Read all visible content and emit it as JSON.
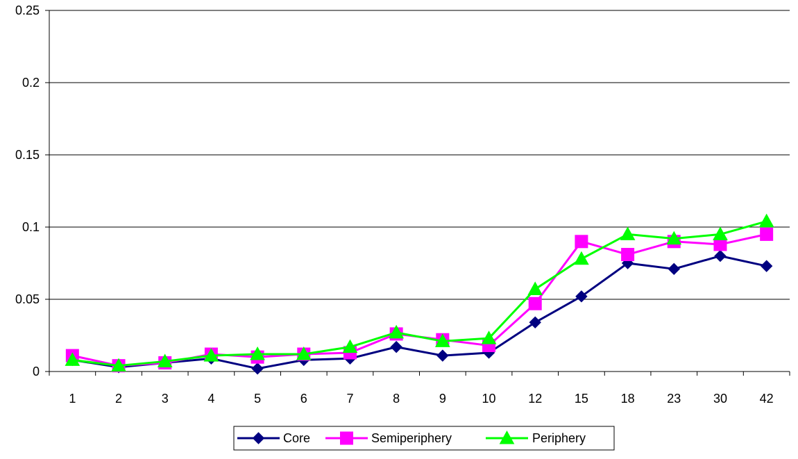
{
  "chart_data": {
    "type": "line",
    "title": "",
    "xlabel": "",
    "ylabel": "",
    "categories": [
      "1",
      "2",
      "3",
      "4",
      "5",
      "6",
      "7",
      "8",
      "9",
      "10",
      "12",
      "15",
      "18",
      "23",
      "30",
      "42"
    ],
    "ylim": [
      0,
      0.25
    ],
    "yticks": [
      "0",
      "0.05",
      "0.1",
      "0.15",
      "0.2",
      "0.25"
    ],
    "grid": "horizontal",
    "legend_position": "bottom",
    "series": [
      {
        "name": "Core",
        "color": "#000080",
        "marker": "diamond",
        "values": [
          0.008,
          0.003,
          0.006,
          0.009,
          0.002,
          0.008,
          0.009,
          0.017,
          0.011,
          0.013,
          0.034,
          0.052,
          0.075,
          0.071,
          0.08,
          0.073
        ]
      },
      {
        "name": "Semiperiphery",
        "color": "#ff00ff",
        "marker": "square",
        "values": [
          0.011,
          0.004,
          0.006,
          0.012,
          0.01,
          0.012,
          0.013,
          0.026,
          0.022,
          0.018,
          0.047,
          0.09,
          0.081,
          0.09,
          0.088,
          0.095
        ]
      },
      {
        "name": "Periphery",
        "color": "#00ff00",
        "marker": "triangle",
        "values": [
          0.008,
          0.004,
          0.007,
          0.011,
          0.012,
          0.012,
          0.017,
          0.027,
          0.021,
          0.023,
          0.057,
          0.078,
          0.095,
          0.092,
          0.095,
          0.104
        ]
      }
    ]
  }
}
